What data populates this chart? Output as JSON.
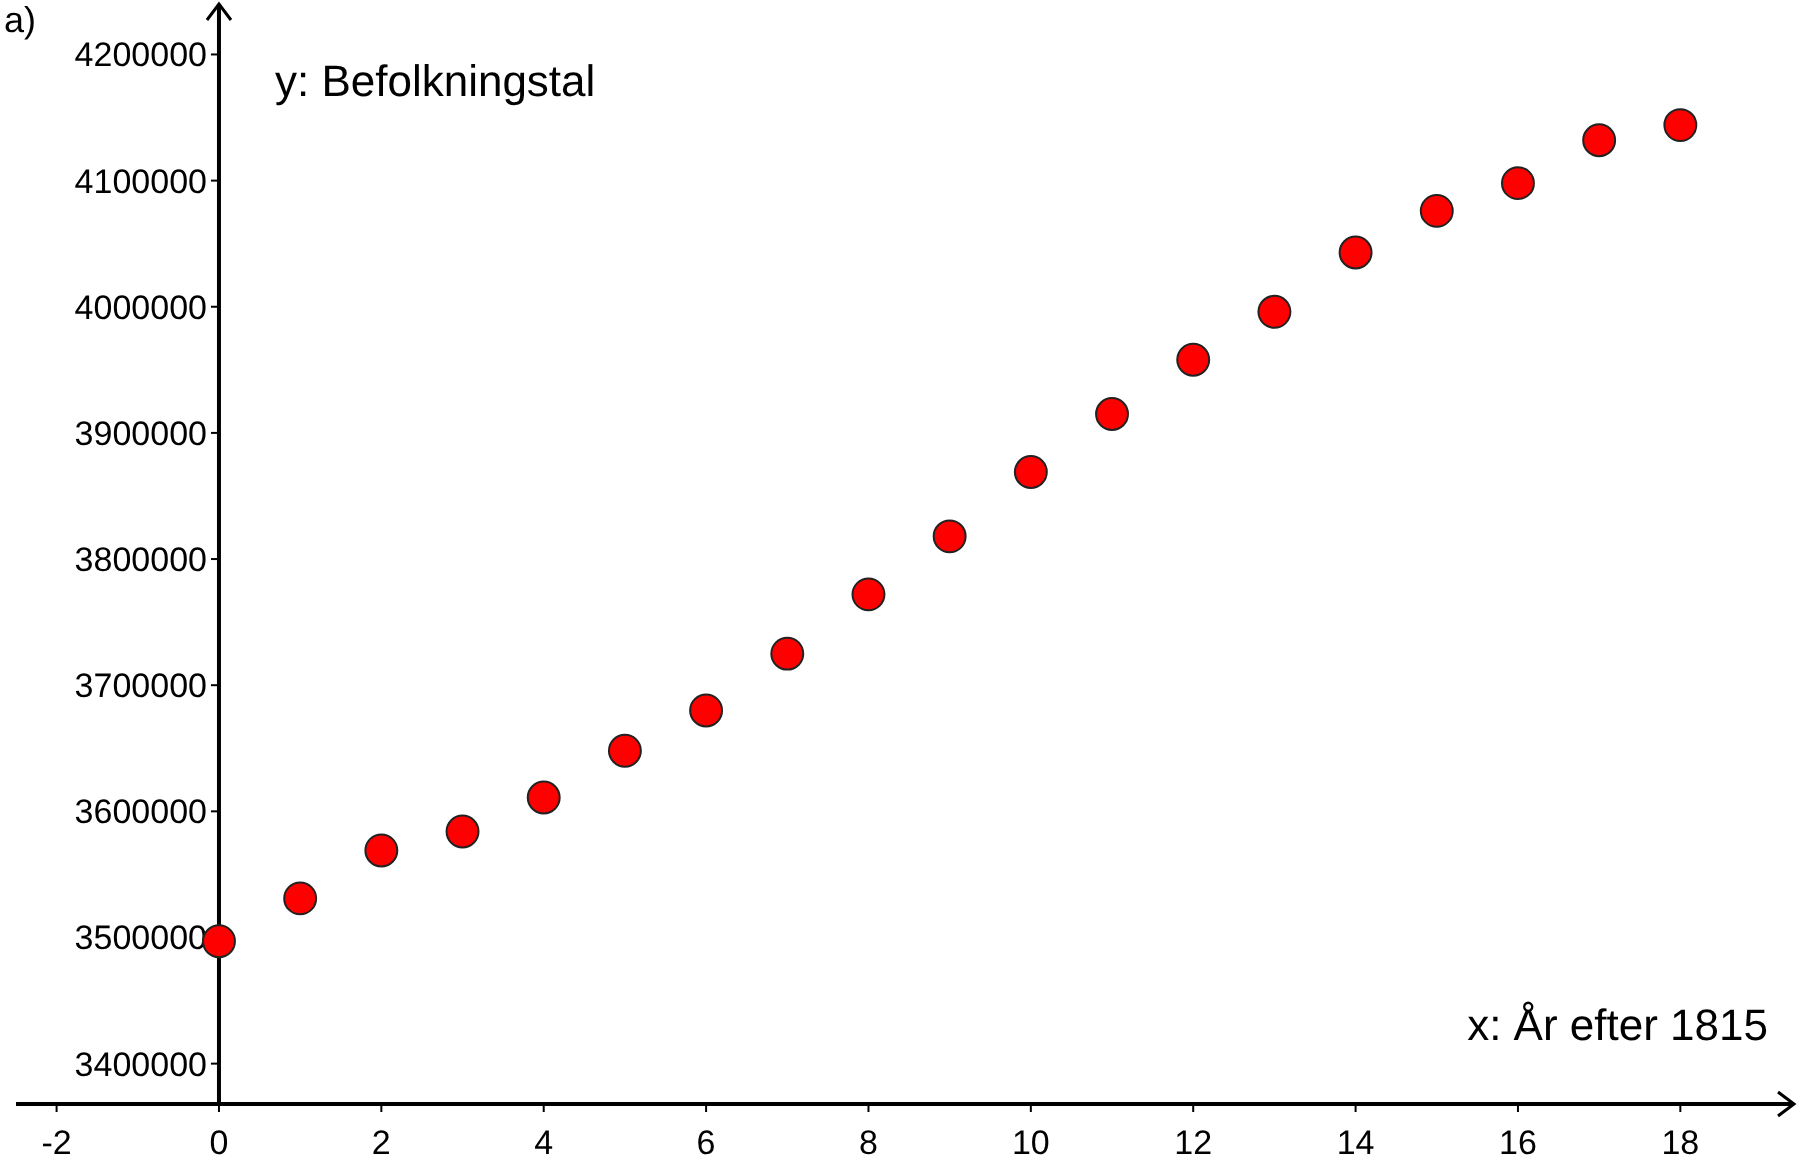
{
  "chart_data": {
    "type": "scatter",
    "xlabel": "x: År efter 1815",
    "ylabel": "y: Befolkningstal",
    "annotations": [
      "a)"
    ],
    "x": [
      0,
      1,
      2,
      3,
      4,
      5,
      6,
      7,
      8,
      9,
      10,
      11,
      12,
      13,
      14,
      15,
      16,
      17,
      18
    ],
    "values": [
      3497000,
      3531000,
      3569000,
      3584000,
      3611000,
      3648000,
      3680000,
      3725000,
      3772000,
      3818000,
      3869000,
      3915000,
      3958000,
      3996000,
      4043000,
      4076000,
      4098000,
      4132000,
      4144000
    ],
    "color": "#ff0000",
    "marker": "circle",
    "grid": false,
    "xlim": [
      -2.5,
      19.4
    ],
    "ylim": [
      3368000,
      4240000
    ],
    "xticks": [
      -2,
      0,
      2,
      4,
      6,
      8,
      10,
      12,
      14,
      16,
      18
    ],
    "yticks": [
      3400000,
      3500000,
      3600000,
      3700000,
      3800000,
      3900000,
      4000000,
      4100000,
      4200000
    ]
  }
}
